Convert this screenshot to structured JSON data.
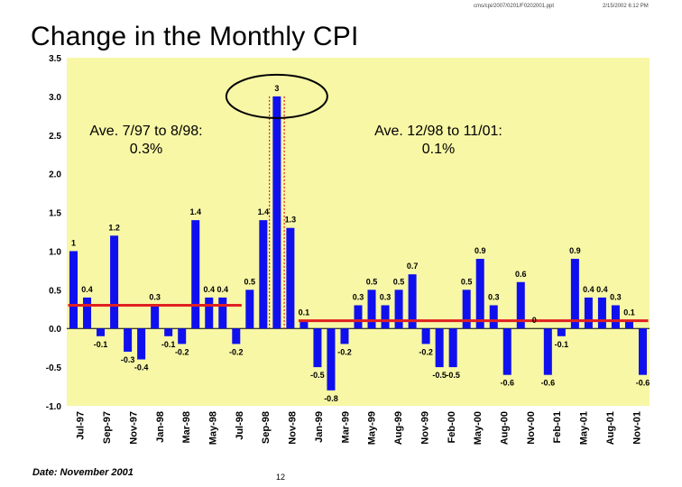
{
  "header": {
    "path": "cms/cpi/2007/0201/F0202001.ppt",
    "timestamp": "2/15/2002 6:12 PM"
  },
  "title": "Change in the Monthly CPI",
  "footer": {
    "date": "Date: November 2001",
    "page": "12"
  },
  "chart_data": {
    "type": "bar",
    "title": "Change in the Monthly CPI",
    "xlabel": "",
    "ylabel": "",
    "ylim": [
      -1.0,
      3.5
    ],
    "yticks": [
      -1.0,
      -0.5,
      0.0,
      0.5,
      1.0,
      1.5,
      2.0,
      2.5,
      3.0,
      3.5
    ],
    "ytick_labels": [
      "-1.0",
      "-0.5",
      "0.0",
      "0.5",
      "1.0",
      "1.5",
      "2.0",
      "2.5",
      "3.0",
      "3.5"
    ],
    "grid": false,
    "legend": "none",
    "colors": {
      "bar": "#1010ee",
      "plot_bg": "#f7f7a6",
      "avg_line": "#e02020",
      "marker_line": "#e02020",
      "circle": "#000000"
    },
    "x_tick_labels": [
      "Jul-97",
      "Sep-97",
      "Nov-97",
      "Jan-98",
      "Mar-98",
      "May-98",
      "Jul-98",
      "Sep-98",
      "Nov-98",
      "Jan-99",
      "Mar-99",
      "May-99",
      "Aug-99",
      "Nov-99",
      "Feb-00",
      "May-00",
      "Aug-00",
      "Nov-00",
      "Feb-01",
      "May-01",
      "Aug-01",
      "Nov-01"
    ],
    "values": [
      1,
      0.4,
      -0.1,
      1.2,
      -0.3,
      -0.4,
      0.3,
      -0.1,
      -0.2,
      1.4,
      0.4,
      0.4,
      -0.2,
      0.5,
      1.4,
      3,
      1.3,
      0.1,
      -0.5,
      -0.8,
      -0.2,
      0.3,
      0.5,
      0.3,
      0.5,
      0.7,
      -0.2,
      -0.5,
      -0.5,
      0.5,
      0.9,
      0.3,
      -0.6,
      0.6,
      0,
      -0.6,
      -0.1,
      0.9,
      0.4,
      0.4,
      0.3,
      0.1,
      -0.6
    ],
    "data_labels": [
      "1",
      "0.4",
      "-0.1",
      "1.2",
      "-0.3",
      "-0.4",
      "0.3",
      "-0.1",
      "-0.2",
      "1.4",
      "0.4",
      "0.4",
      "-0.2",
      "0.5",
      "1.4",
      "3",
      "1.3",
      "0.1",
      "-0.5",
      "-0.8",
      "-0.2",
      "0.3",
      "0.5",
      "0.3",
      "0.5",
      "0.7",
      "-0.2",
      "-0.5",
      "-0.5",
      "0.5",
      "0.9",
      "0.3",
      "-0.6",
      "0.6",
      "0",
      "-0.6",
      "-0.1",
      "0.9",
      "0.4",
      "0.4",
      "0.3",
      "0.1",
      "-0.6"
    ],
    "averages": [
      {
        "label_line1": "Ave. 7/97 to 8/98:",
        "label_line2": "0.3%",
        "value": 0.3,
        "start_index": 0,
        "end_index": 12
      },
      {
        "label_line1": "Ave. 12/98 to 11/01:",
        "label_line2": "0.1%",
        "value": 0.1,
        "start_index": 17,
        "end_index": 42
      }
    ],
    "highlight_index": 15
  }
}
